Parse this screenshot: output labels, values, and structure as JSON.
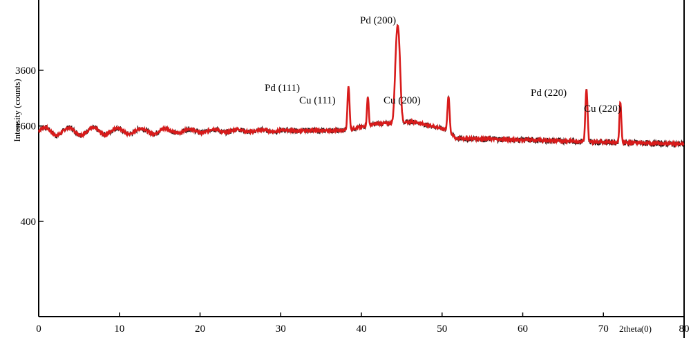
{
  "chart_data": {
    "type": "line",
    "title": "",
    "xlabel": "2theta(0)",
    "ylabel": "Intensity (counts)",
    "xlim": [
      0,
      80
    ],
    "y_scale": "log",
    "ylim": [
      100,
      10000
    ],
    "x_ticks": [
      {
        "value": 0,
        "label": "0"
      },
      {
        "value": 10,
        "label": "10"
      },
      {
        "value": 20,
        "label": "20"
      },
      {
        "value": 30,
        "label": "30"
      },
      {
        "value": 40,
        "label": "40"
      },
      {
        "value": 50,
        "label": "50"
      },
      {
        "value": 60,
        "label": "60"
      },
      {
        "value": 70,
        "label": "70"
      },
      {
        "value": 80,
        "label": "80"
      }
    ],
    "y_ticks": [
      {
        "value": 400,
        "label": "400"
      },
      {
        "value": 1600,
        "label": "1600"
      },
      {
        "value": 3600,
        "label": "3600"
      }
    ],
    "grid": false,
    "colors": {
      "line": "#d81b1b",
      "noise": "#2a1010"
    },
    "baseline": [
      {
        "x": 0,
        "y": 1480
      },
      {
        "x": 38,
        "y": 1500
      },
      {
        "x": 41.8,
        "y": 1650
      },
      {
        "x": 46.5,
        "y": 1700
      },
      {
        "x": 50.5,
        "y": 1520
      },
      {
        "x": 51.7,
        "y": 1340
      },
      {
        "x": 80,
        "y": 1230
      }
    ],
    "peaks": [
      {
        "label": "Pd (111)",
        "x": 38.4,
        "y": 2850
      },
      {
        "label": "Cu (111)",
        "x": 40.8,
        "y": 2450
      },
      {
        "label": "Pd (200)",
        "x": 44.5,
        "y": 6900
      },
      {
        "label": "Cu (200)",
        "x": 50.8,
        "y": 2450
      },
      {
        "label": "Pd (220)",
        "x": 67.9,
        "y": 2700
      },
      {
        "label": "Cu (220)",
        "x": 72.1,
        "y": 2250
      }
    ]
  },
  "peak_labels": {
    "pd111": "Pd (111)",
    "cu111": "Cu (111)",
    "pd200": "Pd (200)",
    "cu200": "Cu (200)",
    "pd220": "Pd (220)",
    "cu220": "Cu (220)"
  }
}
